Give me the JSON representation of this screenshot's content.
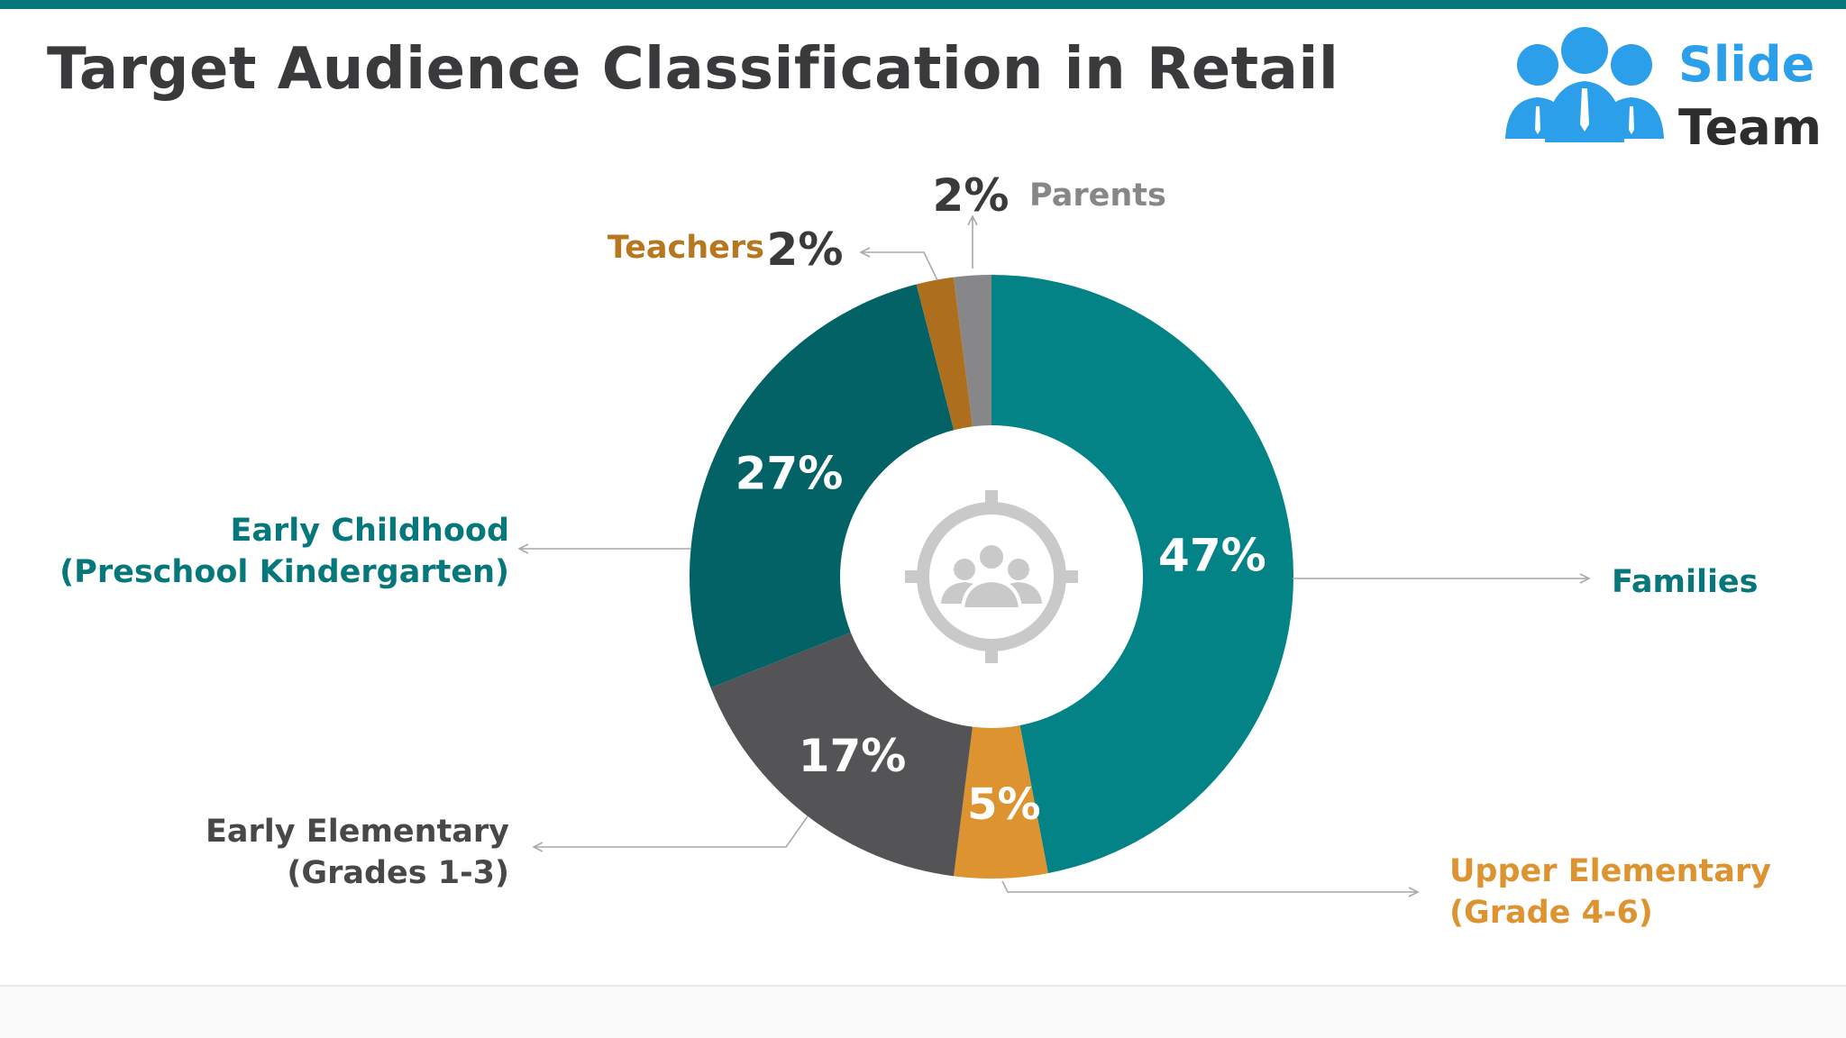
{
  "title": "Target Audience Classification in Retail",
  "logo": {
    "word1": "Slide",
    "word2": "Team"
  },
  "colors": {
    "accent": "#06777b",
    "families": "#048387",
    "upper_elementary": "#dd9330",
    "early_elementary": "#545456",
    "early_childhood": "#036266",
    "teachers": "#ad6f1e",
    "parents": "#878789",
    "title": "#3a3a3c",
    "logo_blue": "#2b9fea"
  },
  "chart_data": {
    "type": "pie",
    "donut": true,
    "center_icon": "target-audience-icon",
    "slices": [
      {
        "name": "Families",
        "label_lines": [
          "Families"
        ],
        "value": 47,
        "value_label": "47%",
        "color": "#048387",
        "label_color": "#06777b"
      },
      {
        "name": "Upper Elementary (Grade 4-6)",
        "label_lines": [
          "Upper Elementary",
          "(Grade 4-6)"
        ],
        "value": 5,
        "value_label": "5%",
        "color": "#dd9330",
        "label_color": "#dd9330"
      },
      {
        "name": "Early Elementary (Grades 1-3)",
        "label_lines": [
          "Early Elementary",
          "(Grades 1-3)"
        ],
        "value": 17,
        "value_label": "17%",
        "color": "#545456",
        "label_color": "#48484a"
      },
      {
        "name": "Early Childhood (Preschool Kindergarten)",
        "label_lines": [
          "Early Childhood",
          "(Preschool Kindergarten)"
        ],
        "value": 27,
        "value_label": "27%",
        "color": "#036266",
        "label_color": "#06777b"
      },
      {
        "name": "Teachers",
        "label_lines": [
          "Teachers"
        ],
        "value": 2,
        "value_label": "2%",
        "color": "#ad6f1e",
        "label_color": "#b7771f"
      },
      {
        "name": "Parents",
        "label_lines": [
          "Parents"
        ],
        "value": 2,
        "value_label": "2%",
        "color": "#878789",
        "label_color": "#878789"
      }
    ]
  }
}
